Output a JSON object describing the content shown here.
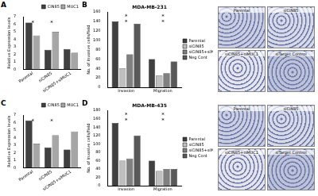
{
  "chart_data": [
    {
      "type": "bar",
      "panel_label": "A",
      "y_label": "Relative Expression levels",
      "categories": [
        "Parental",
        "siCIN85",
        "siCIN85+siMUC1"
      ],
      "series": [
        {
          "name": "CIN85",
          "color": "#404040",
          "values": [
            6.2,
            2.6,
            2.7
          ]
        },
        {
          "name": "MUC1",
          "color": "#a6a6a6",
          "values": [
            4.5,
            5.0,
            2.2
          ]
        }
      ],
      "ylim": [
        0,
        7
      ],
      "yticks": [
        0,
        1,
        2,
        3,
        4,
        5,
        6,
        7
      ],
      "grid": false,
      "legend": "upper right",
      "annotations": [
        "*",
        "*"
      ]
    },
    {
      "type": "bar",
      "panel_label": "B",
      "title": "MDA-MB-231",
      "y_label": "No. of Invasive cells/field",
      "categories": [
        "Invasion",
        "Migration"
      ],
      "series": [
        {
          "name": "Parental",
          "color": "#404040",
          "values": [
            140,
            60
          ]
        },
        {
          "name": "siCIN85",
          "color": "#bfbfbf",
          "values": [
            40,
            25
          ]
        },
        {
          "name": "siCIN85+siMUC1",
          "color": "#808080",
          "values": [
            70,
            30
          ]
        },
        {
          "name": "Neg Cont",
          "color": "#595959",
          "values": [
            135,
            55
          ]
        }
      ],
      "ylim": [
        0,
        160
      ],
      "yticks": [
        0,
        20,
        40,
        60,
        80,
        100,
        120,
        140,
        160
      ],
      "grid": false,
      "legend": "right",
      "annotations": [
        "*",
        "*",
        "*",
        "*"
      ]
    },
    {
      "type": "bar",
      "panel_label": "C",
      "y_label": "Relative Expression levels",
      "categories": [
        "Parental",
        "siCIN85",
        "siCIN85+siMUC1"
      ],
      "series": [
        {
          "name": "CIN85",
          "color": "#404040",
          "values": [
            6.3,
            2.7,
            2.4
          ]
        },
        {
          "name": "MUC1",
          "color": "#a6a6a6",
          "values": [
            3.2,
            4.3,
            4.8
          ]
        }
      ],
      "ylim": [
        0,
        7
      ],
      "yticks": [
        0,
        1,
        2,
        3,
        4,
        5,
        6,
        7
      ],
      "grid": false,
      "legend": "upper right",
      "annotations": [
        "*",
        "*"
      ]
    },
    {
      "type": "bar",
      "panel_label": "D",
      "title": "MDA-MB-435",
      "y_label": "No. of Invasive cells/field",
      "categories": [
        "Invasion",
        "Migration"
      ],
      "series": [
        {
          "name": "Parental",
          "color": "#404040",
          "values": [
            150,
            60
          ]
        },
        {
          "name": "siCIN85",
          "color": "#bfbfbf",
          "values": [
            60,
            35
          ]
        },
        {
          "name": "siCIN85+siMUC1",
          "color": "#808080",
          "values": [
            65,
            40
          ]
        },
        {
          "name": "Neg Cont",
          "color": "#595959",
          "values": [
            120,
            40
          ]
        }
      ],
      "ylim": [
        0,
        180
      ],
      "yticks": [
        0,
        20,
        40,
        60,
        80,
        100,
        120,
        140,
        160,
        180
      ],
      "grid": false,
      "legend": "right",
      "annotations": [
        "*",
        "*",
        "*",
        "*"
      ]
    }
  ],
  "image_panels": [
    {
      "labels": [
        "Parental",
        "siCIN85",
        "siCIN85+siMUC1",
        "siTarget Control"
      ]
    },
    {
      "labels": [
        "Parental",
        "siCIN85",
        "siCIN85+siMUC1",
        "siTarget Control"
      ]
    }
  ]
}
